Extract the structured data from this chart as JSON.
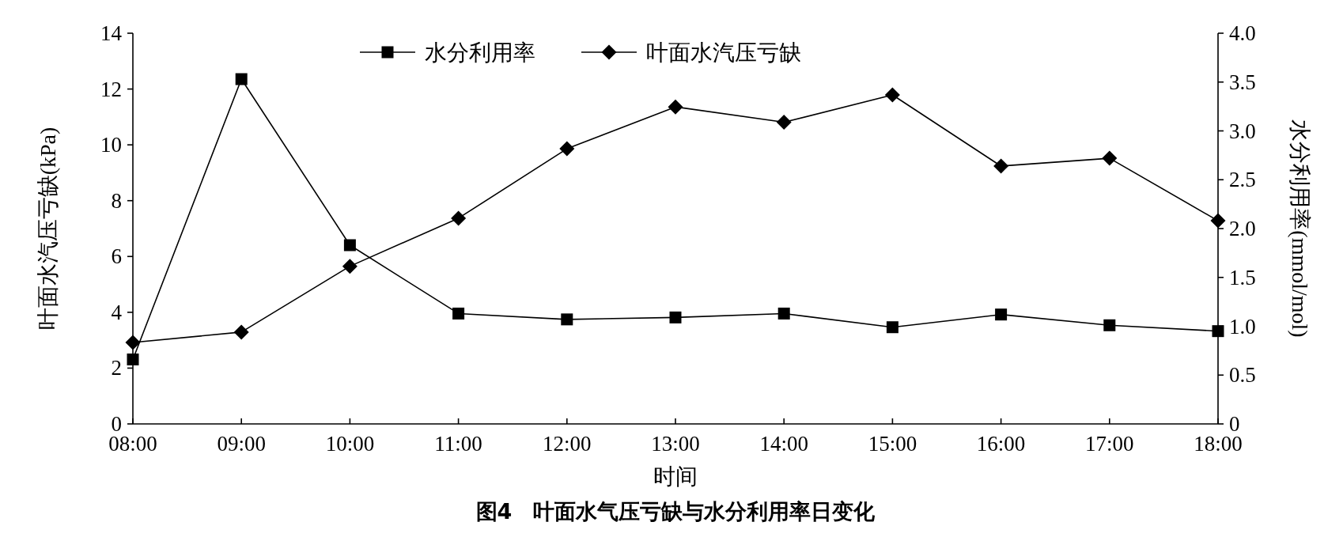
{
  "chart_data": {
    "type": "line",
    "title": "图4　叶面水气压亏缺与水分利用率日变化",
    "xlabel": "时间",
    "ylabel": "叶面水汽压亏缺(kPa)",
    "y2label": "水分利用率(mmol/mol)",
    "categories": [
      "08:00",
      "09:00",
      "10:00",
      "11:00",
      "12:00",
      "13:00",
      "14:00",
      "15:00",
      "16:00",
      "17:00",
      "18:00"
    ],
    "series": [
      {
        "name": "水分利用率",
        "color": "#000000",
        "marker": "square",
        "axis": "y2",
        "values": [
          0.66,
          3.53,
          1.83,
          1.13,
          1.07,
          1.09,
          1.13,
          0.99,
          1.12,
          1.01,
          0.95
        ]
      },
      {
        "name": "叶面水汽压亏缺",
        "color": "#000000",
        "marker": "diamond",
        "values": [
          2.92,
          3.29,
          5.65,
          7.37,
          9.86,
          11.36,
          10.81,
          11.79,
          9.24,
          9.52,
          7.28
        ]
      }
    ],
    "ylim": [
      0,
      14
    ],
    "yticks": [
      0,
      2,
      4,
      6,
      8,
      10,
      12,
      14
    ],
    "y2lim": [
      0,
      4
    ],
    "y2ticks": [
      0,
      0.5,
      {
        "value": 1,
        "label": "1.0"
      },
      {
        "value": 1.5,
        "label": "1.5"
      },
      {
        "value": 2,
        "label": "2.0"
      },
      {
        "value": 2.5,
        "label": "2.5"
      },
      {
        "value": 3,
        "label": "3.0"
      },
      {
        "value": 3.5,
        "label": "3.5"
      },
      {
        "value": 4,
        "label": "4.0"
      }
    ],
    "legend": "top"
  }
}
